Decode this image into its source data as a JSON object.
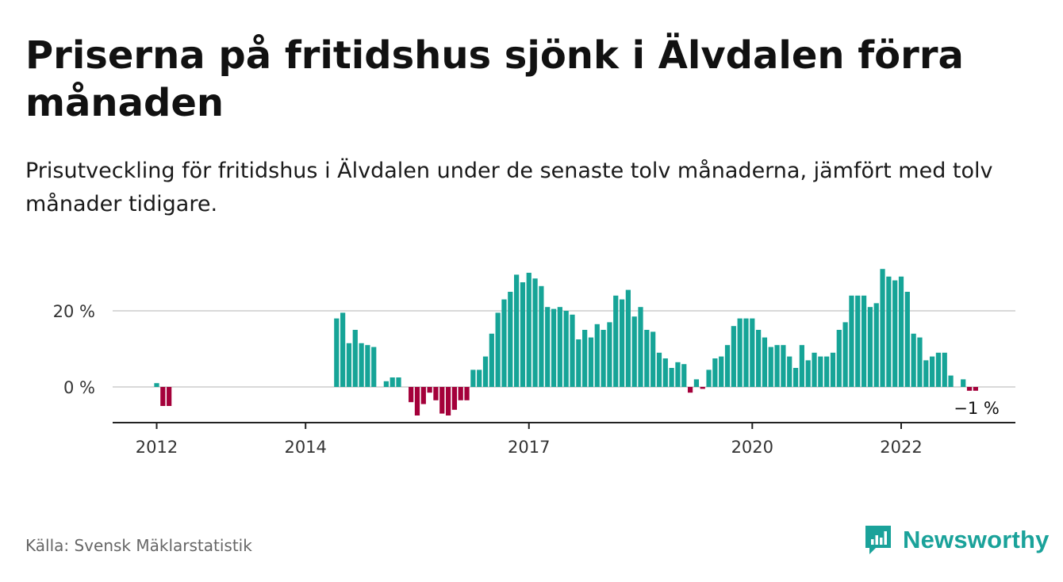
{
  "title": "Priserna på fritidshus sjönk i Älvdalen förra månaden",
  "subtitle": "Prisutveckling för fritidshus i Älvdalen under de senaste tolv månaderna, jämfört med tolv månader tidigare.",
  "source": "Källa: Svensk Mäklarstatistik",
  "brand": {
    "name": "Newsworthy",
    "icon": "newsworthy-logo-icon",
    "color": "#1aa29a"
  },
  "chart_data": {
    "type": "bar",
    "ylabel": "",
    "xlabel": "",
    "ylim": [
      -9,
      32
    ],
    "grid": true,
    "y_ticks": [
      0,
      20
    ],
    "y_tick_labels": [
      "0 %",
      "20 %"
    ],
    "x_ticks": [
      2012,
      2014,
      2017,
      2020,
      2022
    ],
    "x_tick_labels": [
      "2012",
      "2014",
      "2017",
      "2020",
      "2022"
    ],
    "x_start": 2012.0,
    "end_label": "−1 %",
    "colors": {
      "positive": "#16a497",
      "negative": "#a4003a"
    },
    "series": [
      {
        "x_start": "2012-01",
        "values": [
          1,
          -5,
          -5
        ]
      },
      {
        "x_start": "2014-06",
        "values": [
          18,
          19.5,
          11.5,
          15,
          11.5,
          11,
          10.5,
          0,
          1.5,
          2.5,
          2.5,
          0,
          -4,
          -7.5,
          -4.5,
          -1.5,
          -3.5,
          -7,
          -7.5,
          -6,
          -3.5,
          -3.5,
          4.5,
          4.5,
          8,
          14,
          19.5,
          23,
          25,
          29.5,
          27.5,
          30,
          28.5,
          26.5,
          21,
          20.5,
          21,
          20,
          19,
          12.5,
          15,
          13,
          16.5,
          15,
          17,
          24,
          23,
          25.5,
          18.5,
          21,
          15,
          14.5,
          9,
          7.5,
          5,
          6.5,
          6,
          -1.5,
          2,
          -0.5,
          4.5,
          7.5,
          8,
          11,
          16,
          18,
          18,
          18,
          15,
          13,
          10.5,
          11,
          11,
          8,
          5,
          11,
          7,
          9,
          8,
          8,
          9,
          15,
          17,
          24,
          24,
          24,
          21,
          22,
          31,
          29,
          28,
          29,
          25,
          14,
          13,
          7,
          8,
          9,
          9,
          3,
          0,
          2,
          -1,
          -1
        ]
      }
    ]
  }
}
